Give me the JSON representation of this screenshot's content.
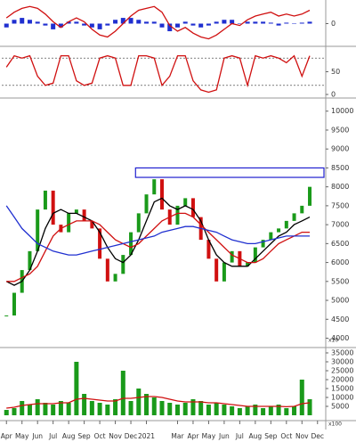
{
  "chart_data": [
    {
      "type": "macd",
      "ylim": [
        -1.1,
        1.1
      ],
      "yticks": [
        0
      ],
      "x": [
        0,
        0.5,
        1,
        1.5,
        2,
        2.5,
        3,
        3.5,
        4,
        4.5,
        5,
        5.5,
        6,
        6.5,
        7,
        7.5,
        8,
        8.5,
        9,
        9.5,
        10,
        10.5,
        11,
        11.5,
        12,
        12.5,
        13,
        13.5,
        14,
        14.5,
        15,
        15.5,
        16,
        16.5,
        17,
        17.5,
        18,
        18.5,
        19,
        19.5
      ],
      "series": [
        {
          "kind": "histogram",
          "color": "#1f2fd0",
          "values": [
            -0.2,
            0.2,
            0.3,
            0.2,
            0.1,
            -0.1,
            -0.3,
            -0.2,
            0.1,
            0.1,
            -0.1,
            -0.2,
            -0.3,
            -0.1,
            0.2,
            0.3,
            0.3,
            0.2,
            0.1,
            0.1,
            -0.2,
            -0.4,
            -0.2,
            0.1,
            -0.1,
            -0.2,
            -0.1,
            0.1,
            0.2,
            0.2,
            0.0,
            0.1,
            0.1,
            0.1,
            0.05,
            -0.1,
            0.05,
            0.0,
            0.05,
            0.1
          ]
        },
        {
          "kind": "line",
          "color": "#d01010",
          "values": [
            0.3,
            0.6,
            0.8,
            0.9,
            0.8,
            0.5,
            0.1,
            -0.2,
            0.1,
            0.3,
            0.1,
            -0.3,
            -0.6,
            -0.7,
            -0.4,
            0.0,
            0.4,
            0.7,
            0.8,
            0.9,
            0.6,
            -0.1,
            -0.4,
            -0.2,
            -0.5,
            -0.7,
            -0.8,
            -0.6,
            -0.3,
            0.0,
            -0.1,
            0.2,
            0.4,
            0.5,
            0.6,
            0.4,
            0.5,
            0.4,
            0.5,
            0.7
          ]
        }
      ]
    },
    {
      "type": "stochastic",
      "ylim": [
        0,
        100
      ],
      "yticks": [
        0,
        50
      ],
      "levels": [
        80,
        20
      ],
      "x": [
        0,
        0.5,
        1,
        1.5,
        2,
        2.5,
        3,
        3.5,
        4,
        4.5,
        5,
        5.5,
        6,
        6.5,
        7,
        7.5,
        8,
        8.5,
        9,
        9.5,
        10,
        10.5,
        11,
        11.5,
        12,
        12.5,
        13,
        13.5,
        14,
        14.5,
        15,
        15.5,
        16,
        16.5,
        17,
        17.5,
        18,
        18.5,
        19,
        19.5
      ],
      "series": [
        {
          "kind": "line",
          "color": "#d01010",
          "values": [
            60,
            85,
            80,
            85,
            40,
            20,
            25,
            85,
            85,
            30,
            20,
            25,
            80,
            85,
            80,
            20,
            20,
            85,
            85,
            80,
            20,
            40,
            85,
            85,
            30,
            10,
            5,
            10,
            80,
            85,
            80,
            20,
            85,
            80,
            85,
            80,
            70,
            85,
            40,
            85
          ]
        }
      ]
    },
    {
      "type": "price",
      "ylim": [
        3800,
        10300
      ],
      "yticks": [
        4000,
        4500,
        5000,
        5500,
        6000,
        6500,
        7000,
        7500,
        8000,
        8500,
        9000,
        9500,
        10000
      ],
      "unit_label": "x10",
      "zone": [
        8250,
        8500
      ],
      "zone_color": "#2020d0",
      "x": [
        0,
        0.5,
        1,
        1.5,
        2,
        2.5,
        3,
        3.5,
        4,
        4.5,
        5,
        5.5,
        6,
        6.5,
        7,
        7.5,
        8,
        8.5,
        9,
        9.5,
        10,
        10.5,
        11,
        11.5,
        12,
        12.5,
        13,
        13.5,
        14,
        14.5,
        15,
        15.5,
        16,
        16.5,
        17,
        17.5,
        18,
        18.5,
        19,
        19.5
      ],
      "close": [
        4600,
        5200,
        5800,
        6300,
        7400,
        7900,
        7000,
        6800,
        7300,
        7400,
        7100,
        6900,
        6100,
        5500,
        5700,
        6200,
        6800,
        7300,
        7800,
        8200,
        7400,
        7000,
        7500,
        7700,
        7200,
        6600,
        6100,
        5500,
        6000,
        6300,
        5900,
        6000,
        6400,
        6600,
        6800,
        6900,
        7100,
        7300,
        7500,
        8000
      ],
      "up_color": "#1a9a1a",
      "down_color": "#d01010",
      "series": [
        {
          "kind": "line",
          "color": "#000000",
          "values": [
            5500,
            5400,
            5500,
            5800,
            6300,
            6900,
            7300,
            7400,
            7300,
            7300,
            7200,
            7100,
            6800,
            6400,
            6100,
            6000,
            6200,
            6600,
            7100,
            7600,
            7700,
            7500,
            7400,
            7500,
            7400,
            7100,
            6600,
            6200,
            6000,
            5900,
            5900,
            5900,
            6100,
            6300,
            6500,
            6700,
            6800,
            7000,
            7100,
            7200
          ]
        },
        {
          "kind": "line",
          "color": "#d01010",
          "values": [
            5500,
            5500,
            5600,
            5700,
            5900,
            6300,
            6700,
            6900,
            7000,
            7100,
            7100,
            7100,
            7000,
            6800,
            6600,
            6500,
            6400,
            6500,
            6700,
            6900,
            7100,
            7200,
            7300,
            7300,
            7200,
            7000,
            6800,
            6600,
            6400,
            6200,
            6100,
            6000,
            6000,
            6100,
            6300,
            6500,
            6600,
            6700,
            6800,
            6800
          ]
        },
        {
          "kind": "line",
          "color": "#2030d0",
          "values": [
            7500,
            7200,
            6900,
            6700,
            6500,
            6400,
            6300,
            6250,
            6200,
            6200,
            6250,
            6300,
            6350,
            6400,
            6450,
            6500,
            6550,
            6600,
            6650,
            6700,
            6800,
            6850,
            6900,
            6950,
            6950,
            6900,
            6850,
            6800,
            6700,
            6600,
            6550,
            6500,
            6500,
            6550,
            6600,
            6650,
            6700,
            6700,
            6700,
            6700
          ]
        }
      ]
    },
    {
      "type": "volume",
      "ylim": [
        0,
        37000
      ],
      "yticks": [
        5000,
        10000,
        15000,
        20000,
        25000,
        30000,
        35000
      ],
      "unit_label": "x100",
      "xlim": [
        -0.3,
        20.3
      ],
      "xticks": [
        {
          "value": 0,
          "label": "Apr"
        },
        {
          "value": 1,
          "label": "May"
        },
        {
          "value": 2,
          "label": "Jun"
        },
        {
          "value": 3,
          "label": "Jul"
        },
        {
          "value": 4,
          "label": "Aug"
        },
        {
          "value": 5,
          "label": "Sep"
        },
        {
          "value": 6,
          "label": "Oct"
        },
        {
          "value": 7,
          "label": "Nov"
        },
        {
          "value": 8,
          "label": "Dec"
        },
        {
          "value": 9,
          "label": "2021"
        },
        {
          "value": 11,
          "label": "Mar"
        },
        {
          "value": 12,
          "label": "Apr"
        },
        {
          "value": 13,
          "label": "May"
        },
        {
          "value": 14,
          "label": "Jun"
        },
        {
          "value": 15,
          "label": "Jul"
        },
        {
          "value": 16,
          "label": "Aug"
        },
        {
          "value": 17,
          "label": "Sep"
        },
        {
          "value": 18,
          "label": "Oct"
        },
        {
          "value": 19,
          "label": "Nov"
        },
        {
          "value": 20,
          "label": "Dec"
        }
      ],
      "x": [
        0,
        0.5,
        1,
        1.5,
        2,
        2.5,
        3,
        3.5,
        4,
        4.5,
        5,
        5.5,
        6,
        6.5,
        7,
        7.5,
        8,
        8.5,
        9,
        9.5,
        10,
        10.5,
        11,
        11.5,
        12,
        12.5,
        13,
        13.5,
        14,
        14.5,
        15,
        15.5,
        16,
        16.5,
        17,
        17.5,
        18,
        18.5,
        19,
        19.5
      ],
      "series": [
        {
          "kind": "histogram",
          "color": "#1a9a1a",
          "values": [
            3000,
            4000,
            8000,
            6000,
            9000,
            7000,
            6000,
            8000,
            7000,
            30000,
            12000,
            8000,
            7000,
            6000,
            9000,
            25000,
            8000,
            15000,
            12000,
            10000,
            8000,
            7000,
            6000,
            7000,
            9000,
            8000,
            6000,
            7000,
            6000,
            5000,
            4000,
            5000,
            6000,
            4000,
            5000,
            6000,
            4000,
            5000,
            20000,
            9000
          ]
        },
        {
          "kind": "line",
          "color": "#d01010",
          "values": [
            4000,
            4500,
            5500,
            6000,
            6500,
            6500,
            6500,
            7000,
            7000,
            9000,
            9500,
            9000,
            8500,
            8000,
            8000,
            9500,
            9500,
            10000,
            10500,
            10500,
            10000,
            9000,
            8000,
            7500,
            7500,
            7500,
            7000,
            7000,
            6500,
            6000,
            5500,
            5000,
            5000,
            5000,
            5000,
            5000,
            4800,
            5000,
            6500,
            7000
          ]
        }
      ]
    }
  ]
}
